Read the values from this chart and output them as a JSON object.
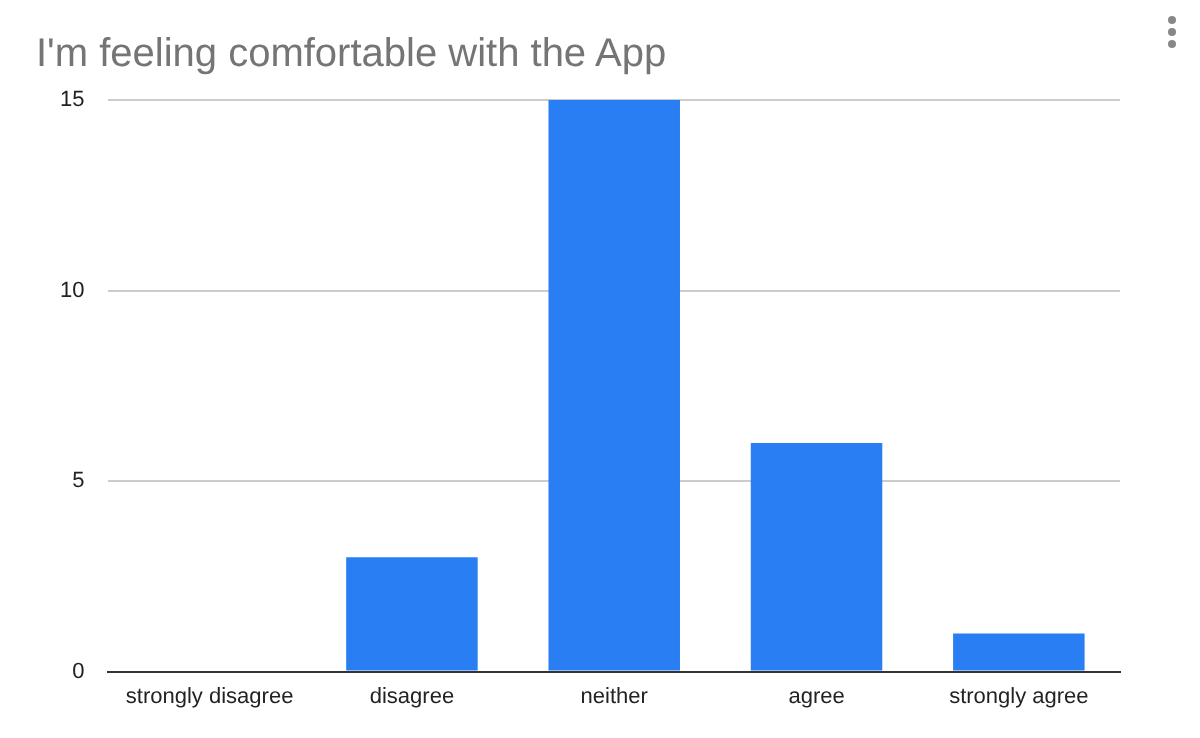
{
  "chart_data": {
    "type": "bar",
    "title": "I'm feeling comfortable with the App",
    "categories": [
      "strongly disagree",
      "disagree",
      "neither",
      "agree",
      "strongly agree"
    ],
    "values": [
      0,
      3,
      15,
      6,
      1
    ],
    "color": "#2a7ef4",
    "ylim": [
      0,
      15
    ],
    "yticks": [
      0,
      5,
      10,
      15
    ],
    "grid": "y",
    "legend": false
  }
}
